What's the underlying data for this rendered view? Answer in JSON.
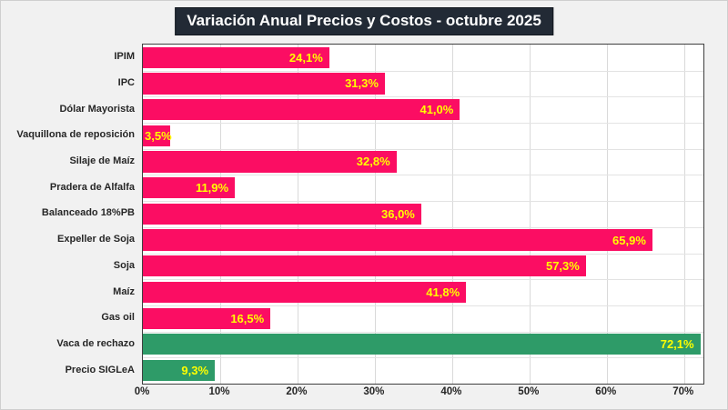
{
  "title": "Variación Anual Precios y Costos - octubre 2025",
  "chart_data": {
    "type": "bar",
    "orientation": "horizontal",
    "title": "Variación Anual Precios y Costos - octubre 2025",
    "categories": [
      "IPIM",
      "IPC",
      "Dólar Mayorista",
      "Vaquillona de reposición",
      "Silaje de Maíz",
      "Pradera de Alfalfa",
      "Balanceado 18%PB",
      "Expeller de Soja",
      "Soja",
      "Maíz",
      "Gas oil",
      "Vaca de rechazo",
      "Precio SIGLeA"
    ],
    "values": [
      24.1,
      31.3,
      41.0,
      3.5,
      32.8,
      11.9,
      36.0,
      65.9,
      57.3,
      41.8,
      16.5,
      72.1,
      9.3
    ],
    "value_labels": [
      "24,1%",
      "31,3%",
      "41,0%",
      "3,5%",
      "32,8%",
      "11,9%",
      "36,0%",
      "65,9%",
      "57,3%",
      "41,8%",
      "16,5%",
      "72,1%",
      "9,3%"
    ],
    "bar_color_keys": [
      "pink",
      "pink",
      "pink",
      "pink",
      "pink",
      "pink",
      "pink",
      "pink",
      "pink",
      "pink",
      "pink",
      "green",
      "green"
    ],
    "colors": {
      "pink": "#fb0d63",
      "green": "#2e9b68",
      "value_text": "#ffff00",
      "title_bg": "#222a35",
      "title_text": "#ffffff",
      "gridline": "#d9d9d9",
      "plot_border": "#3f3f3f",
      "background": "#f1f1f1"
    },
    "xlabel": "",
    "ylabel": "",
    "xlim": [
      0,
      72.5
    ],
    "x_tick_values": [
      0,
      10,
      20,
      30,
      40,
      50,
      60,
      70
    ],
    "x_tick_labels": [
      "0%",
      "10%",
      "20%",
      "30%",
      "40%",
      "50%",
      "60%",
      "70%"
    ],
    "grid": true,
    "legend": false
  }
}
